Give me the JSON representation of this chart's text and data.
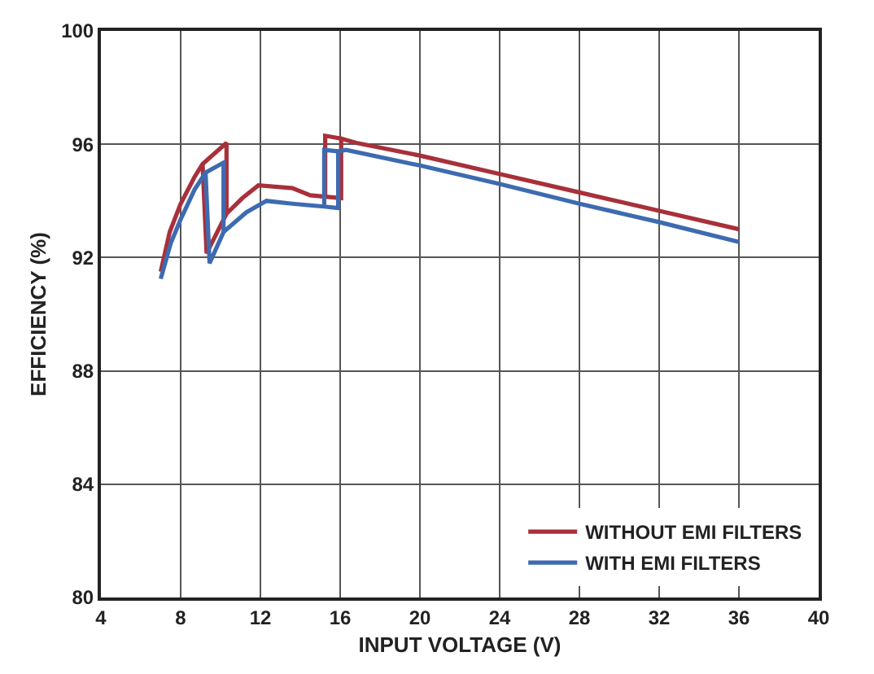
{
  "chart_data": {
    "type": "line",
    "xlabel": "INPUT VOLTAGE (V)",
    "ylabel": "EFFICIENCY (%)",
    "xlim": [
      4,
      40
    ],
    "xticks": [
      4,
      8,
      12,
      16,
      20,
      24,
      28,
      32,
      36,
      40
    ],
    "ylim": [
      80,
      100
    ],
    "yticks": [
      80,
      84,
      88,
      92,
      96,
      100
    ],
    "grid": true,
    "legend": "bottom right",
    "line_style": "solid",
    "series": [
      {
        "name": "WITHOUT EMI FILTERS",
        "color": "#a8303a",
        "x": [
          7,
          7.45,
          8,
          8.7,
          9.1,
          10.3,
          10.3,
          11.1,
          11.9,
          13.6,
          14.5,
          15.25,
          16.05,
          16.05,
          16.8,
          20,
          24,
          28,
          32,
          36,
          null,
          9.1,
          9.3,
          10.3,
          null,
          15.25,
          15.25,
          16.05
        ],
        "values": [
          91.5,
          92.9,
          93.9,
          94.85,
          95.3,
          96.05,
          93.55,
          94.1,
          94.55,
          94.45,
          94.2,
          94.15,
          94.1,
          96.2,
          96.05,
          95.6,
          94.95,
          94.3,
          93.65,
          93.0,
          null,
          95.3,
          92.15,
          93.55,
          null,
          94.15,
          96.3,
          96.2
        ]
      },
      {
        "name": "WITH EMI FILTERS",
        "color": "#3e6bb0",
        "x": [
          7,
          7.5,
          8,
          8.7,
          9.25,
          10.15,
          10.15,
          11.3,
          12.3,
          13.6,
          15.2,
          15.9,
          15.9,
          16.3,
          20,
          24,
          28,
          32,
          36,
          null,
          9.25,
          9.45,
          10.15,
          null,
          15.2,
          15.2,
          15.9
        ],
        "values": [
          91.25,
          92.5,
          93.35,
          94.4,
          95.0,
          95.35,
          92.9,
          93.6,
          94.0,
          93.9,
          93.8,
          93.75,
          95.75,
          95.8,
          95.25,
          94.6,
          93.9,
          93.25,
          92.55,
          null,
          95.0,
          91.8,
          92.9,
          null,
          93.8,
          95.8,
          95.75
        ]
      }
    ]
  }
}
